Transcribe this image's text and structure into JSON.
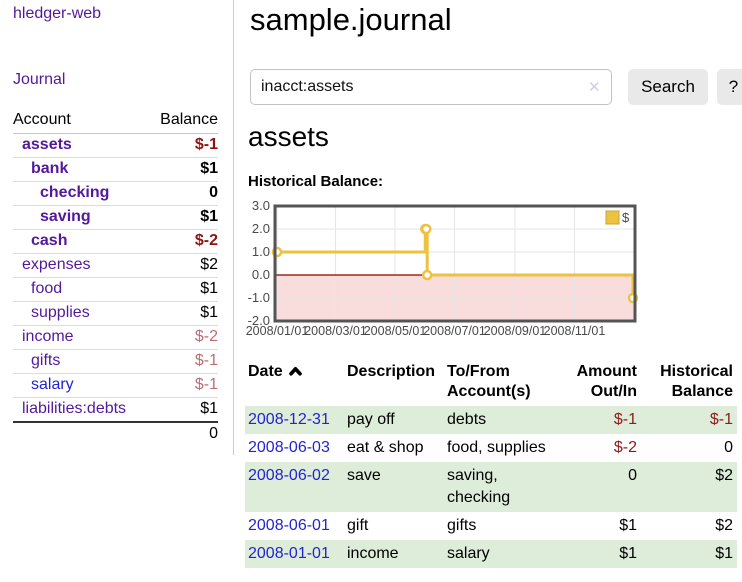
{
  "app": {
    "title": "hledger-web"
  },
  "colors": {
    "link_purple": "#53199b",
    "link_blue": "#2424cf",
    "negative_bold": "#8c1414",
    "negative_soft": "#b96e76",
    "row_green": "#deecda",
    "chart_line": "#edc240",
    "chart_border": "#545454",
    "chart_negative_fill": "#f9dcdc",
    "chart_zero_line": "#8b0000"
  },
  "sidebar": {
    "journal_label": "Journal",
    "accounts_table": {
      "headers": {
        "account": "Account",
        "balance": "Balance"
      },
      "rows": [
        {
          "label": "assets",
          "level": 1,
          "bold": true,
          "color": "purple",
          "balance": "$-1",
          "balance_style": "neg-bold"
        },
        {
          "label": "bank",
          "level": 2,
          "bold": true,
          "color": "purple",
          "balance": "$1",
          "balance_style": "bold"
        },
        {
          "label": "checking",
          "level": 3,
          "bold": true,
          "color": "purple",
          "balance": "0",
          "balance_style": "bold"
        },
        {
          "label": "saving",
          "level": 3,
          "bold": true,
          "color": "purple",
          "balance": "$1",
          "balance_style": "bold"
        },
        {
          "label": "cash",
          "level": 2,
          "bold": true,
          "color": "purple",
          "balance": "$-2",
          "balance_style": "neg-bold"
        },
        {
          "label": "expenses",
          "level": 1,
          "bold": false,
          "color": "purple",
          "balance": "$2",
          "balance_style": "plain"
        },
        {
          "label": "food",
          "level": 2,
          "bold": false,
          "color": "purple",
          "balance": "$1",
          "balance_style": "plain"
        },
        {
          "label": "supplies",
          "level": 2,
          "bold": false,
          "color": "purple",
          "balance": "$1",
          "balance_style": "plain"
        },
        {
          "label": "income",
          "level": 1,
          "bold": false,
          "color": "purple",
          "balance": "$-2",
          "balance_style": "neg-soft"
        },
        {
          "label": "gifts",
          "level": 2,
          "bold": false,
          "color": "purple",
          "balance": "$-1",
          "balance_style": "neg-soft"
        },
        {
          "label": "salary",
          "level": 2,
          "bold": false,
          "color": "blue",
          "balance": "$-1",
          "balance_style": "neg-soft"
        },
        {
          "label": "liabilities:debts",
          "level": 1,
          "bold": false,
          "color": "purple",
          "balance": "$1",
          "balance_style": "plain"
        }
      ],
      "total": "0"
    }
  },
  "main": {
    "title": "sample.journal",
    "search": {
      "value": "inacct:assets",
      "clear_glyph": "✕",
      "button_label": "Search",
      "help_label": "?"
    },
    "account_heading": "assets",
    "chart_heading": "Historical Balance:"
  },
  "chart_data": {
    "type": "line",
    "title": "Historical Balance:",
    "step": true,
    "series": [
      {
        "name": "$",
        "color": "#edc240",
        "points": [
          [
            "2008-01-01",
            1
          ],
          [
            "2008-06-01",
            2
          ],
          [
            "2008-06-02",
            2
          ],
          [
            "2008-06-03",
            0
          ],
          [
            "2008-12-31",
            -1
          ]
        ]
      }
    ],
    "xlim": [
      "2008-01-01",
      "2008-12-31"
    ],
    "ylim": [
      -2,
      3
    ],
    "x_ticks": [
      "2008/01/01",
      "2008/03/01",
      "2008/05/01",
      "2008/07/01",
      "2008/09/01",
      "2008/11/01"
    ],
    "y_tick_labels": [
      "3.0",
      "2.0",
      "1.0",
      "0.0",
      "-1.0",
      "-2.0"
    ],
    "y_tick_values": [
      3,
      2,
      1,
      0,
      -1,
      -2
    ],
    "grid": true,
    "legend": {
      "label": "$",
      "position": "top-right"
    },
    "negative_region_fill": "#f9dcdc",
    "zero_line_color": "#8b0000"
  },
  "register": {
    "headers": {
      "date": "Date",
      "description": "Description",
      "accounts_line1": "To/From",
      "accounts_line2": "Account(s)",
      "amount_line1": "Amount",
      "amount_line2": "Out/In",
      "balance_line1": "Historical",
      "balance_line2": "Balance"
    },
    "rows": [
      {
        "date": "2008-12-31",
        "description": "pay off",
        "accounts": "debts",
        "amount": "$-1",
        "amount_negative": true,
        "balance": "$-1",
        "balance_negative": true,
        "green": true
      },
      {
        "date": "2008-06-03",
        "description": "eat & shop",
        "accounts": "food, supplies",
        "amount": "$-2",
        "amount_negative": true,
        "balance": "0",
        "balance_negative": false,
        "green": false
      },
      {
        "date": "2008-06-02",
        "description": "save",
        "accounts": "saving, checking",
        "amount": "0",
        "amount_negative": false,
        "balance": "$2",
        "balance_negative": false,
        "green": true
      },
      {
        "date": "2008-06-01",
        "description": "gift",
        "accounts": "gifts",
        "amount": "$1",
        "amount_negative": false,
        "balance": "$2",
        "balance_negative": false,
        "green": false
      },
      {
        "date": "2008-01-01",
        "description": "income",
        "accounts": "salary",
        "amount": "$1",
        "amount_negative": false,
        "balance": "$1",
        "balance_negative": false,
        "green": true
      }
    ]
  }
}
